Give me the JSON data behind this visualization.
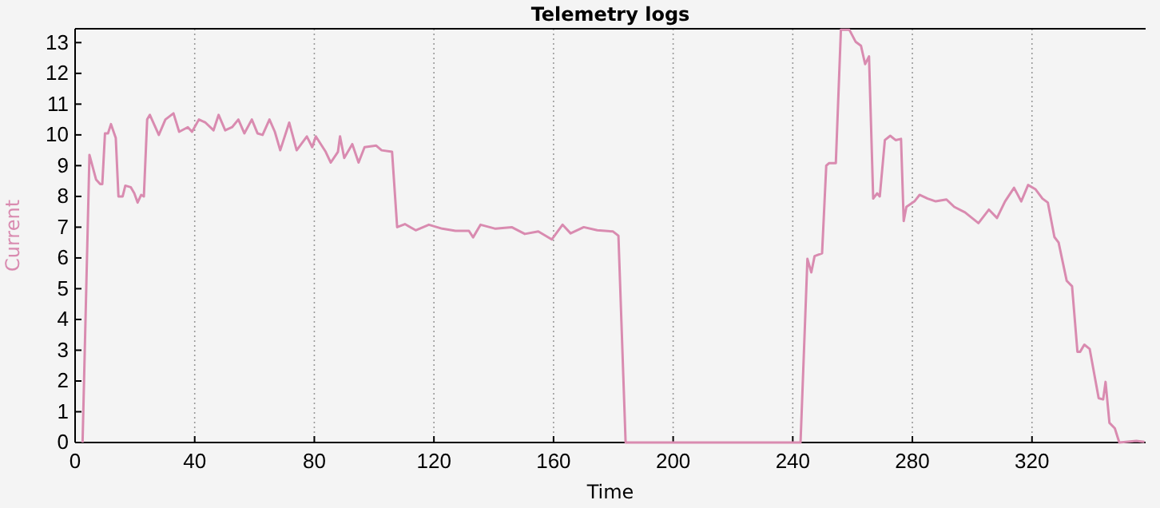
{
  "chart_data": {
    "type": "line",
    "title": "Telemetry logs",
    "xlabel": "Time",
    "ylabel": "Current",
    "grid": "x",
    "xlim": [
      0,
      358
    ],
    "ylim": [
      0,
      13.45
    ],
    "xticks": [
      0,
      40,
      80,
      120,
      160,
      200,
      240,
      280,
      320
    ],
    "yticks": [
      0,
      1,
      2,
      3,
      4,
      5,
      6,
      7,
      8,
      9,
      10,
      11,
      12,
      13
    ],
    "series": [
      {
        "color": "#d98bb0",
        "x": [
          2.5,
          4.8,
          7,
          8.4,
          9.1,
          10,
          11,
          12,
          13.6,
          14.5,
          15.9,
          16.8,
          18.6,
          19.8,
          20.9,
          22.1,
          23,
          24.1,
          25,
          28,
          30.2,
          32.9,
          34.8,
          37.7,
          39.1,
          41.4,
          43.6,
          46.3,
          48,
          50.2,
          52.5,
          54.6,
          56.6,
          59.1,
          61,
          62.7,
          65,
          66.8,
          68.6,
          71.6,
          74.1,
          77.5,
          79.3,
          80.5,
          83.8,
          85.5,
          87.9,
          88.6,
          90,
          92.7,
          94.8,
          96.8,
          100.7,
          102.5,
          106,
          107.7,
          110.3,
          113.9,
          118.3,
          122.8,
          127.2,
          131.7,
          133.1,
          135.6,
          140.6,
          146,
          150.4,
          154.9,
          159.4,
          163,
          165.7,
          170.1,
          174.6,
          179.9,
          181.7,
          184.1,
          242.6,
          244.9,
          246.2,
          247.3,
          249.8,
          251.2,
          252.1,
          254.4,
          256.1,
          258.9,
          261,
          262.8,
          264.2,
          265.5,
          266.9,
          268.2,
          269.1,
          270.8,
          272.6,
          274.4,
          276.2,
          277.1,
          278,
          280.7,
          282.4,
          285.1,
          287.8,
          291.4,
          294,
          297.6,
          302.1,
          305.6,
          308.3,
          311,
          314,
          316.4,
          318.7,
          321.2,
          323.5,
          325.3,
          327.5,
          328.9,
          331.6,
          333.4,
          335.2,
          336.1,
          337.5,
          339.3,
          342.3,
          343.8,
          344.6,
          345.9,
          347.7,
          349.2,
          354.9,
          357.6
        ],
        "values": [
          0,
          9.35,
          8.55,
          8.4,
          8.4,
          10.05,
          10.05,
          10.35,
          9.9,
          8,
          8,
          8.35,
          8.3,
          8.1,
          7.8,
          8.05,
          8,
          10.5,
          10.65,
          10,
          10.5,
          10.7,
          10.1,
          10.25,
          10.1,
          10.5,
          10.4,
          10.15,
          10.65,
          10.15,
          10.25,
          10.5,
          10.05,
          10.5,
          10.05,
          10,
          10.5,
          10.1,
          9.5,
          10.4,
          9.5,
          9.95,
          9.6,
          9.95,
          9.45,
          9.1,
          9.45,
          9.95,
          9.25,
          9.7,
          9.1,
          9.6,
          9.65,
          9.5,
          9.45,
          7,
          7.1,
          6.9,
          7.08,
          6.95,
          6.88,
          6.88,
          6.67,
          7.08,
          6.95,
          7,
          6.78,
          6.86,
          6.6,
          7.08,
          6.8,
          7,
          6.9,
          6.86,
          6.72,
          0,
          0,
          5.97,
          5.53,
          6.06,
          6.15,
          9,
          9.08,
          9.08,
          13.42,
          13.42,
          13.03,
          12.9,
          12.3,
          12.55,
          7.93,
          8.1,
          8,
          9.83,
          9.97,
          9.83,
          9.87,
          7.2,
          7.66,
          7.84,
          8.05,
          7.93,
          7.84,
          7.9,
          7.66,
          7.48,
          7.13,
          7.57,
          7.3,
          7.84,
          8.28,
          7.84,
          8.37,
          8.23,
          7.93,
          7.8,
          6.68,
          6.5,
          5.26,
          5.08,
          2.95,
          2.95,
          3.18,
          3.04,
          1.44,
          1.4,
          1.97,
          0.64,
          0.46,
          0,
          0.05,
          0.02
        ]
      }
    ]
  }
}
